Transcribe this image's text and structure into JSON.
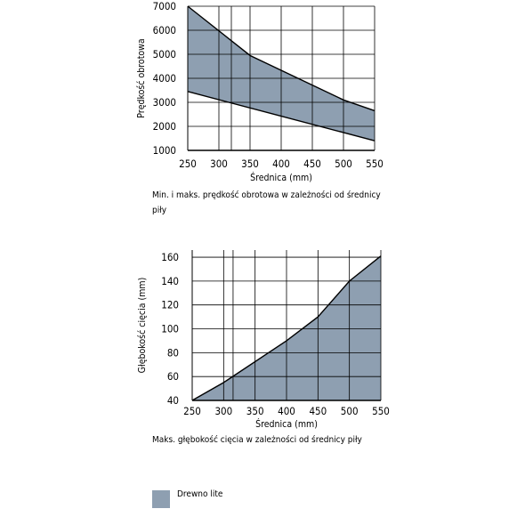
{
  "colors": {
    "fill": "#8e9fb1",
    "line": "#000000",
    "grid": "#000000"
  },
  "chart_data": [
    {
      "type": "area",
      "title": "",
      "caption": "Min. i maks. prędkość obrotowa w zależności od średnicy piły",
      "xlabel": "Średnica (mm)",
      "ylabel": "Prędkość obrotowa",
      "x_ticks": [
        250,
        300,
        350,
        400,
        450,
        500,
        550
      ],
      "y_ticks": [
        1000,
        2000,
        3000,
        4000,
        5000,
        6000,
        7000
      ],
      "x_grid": [
        250,
        300,
        320,
        350,
        400,
        450,
        500,
        550
      ],
      "y_grid": [
        1000,
        2000,
        3000,
        4000,
        5000,
        6000,
        7000
      ],
      "xlim": [
        250,
        550
      ],
      "ylim": [
        1000,
        7000
      ],
      "series": [
        {
          "name": "Drewno lite",
          "role": "max",
          "x": [
            250,
            350,
            500,
            550
          ],
          "y": [
            7000,
            4950,
            3100,
            2650
          ]
        },
        {
          "name": "Drewno lite",
          "role": "min",
          "x": [
            250,
            550
          ],
          "y": [
            3450,
            1400
          ]
        }
      ]
    },
    {
      "type": "area",
      "title": "",
      "caption": "Maks. głębokość cięcia w zależności od średnicy piły",
      "xlabel": "Średnica (mm)",
      "ylabel": "Głębokość cięcia (mm)",
      "x_ticks": [
        250,
        300,
        350,
        400,
        450,
        500,
        550
      ],
      "y_ticks": [
        40,
        60,
        80,
        100,
        120,
        140,
        160
      ],
      "x_grid": [
        250,
        300,
        315,
        350,
        400,
        450,
        500,
        550
      ],
      "y_grid": [
        40,
        60,
        80,
        100,
        120,
        140,
        160
      ],
      "xlim": [
        250,
        550
      ],
      "ylim": [
        40,
        166
      ],
      "series": [
        {
          "name": "Drewno lite",
          "role": "max",
          "x": [
            250,
            300,
            400,
            450,
            500,
            550
          ],
          "y": [
            40,
            55,
            90,
            110,
            140,
            161
          ]
        }
      ]
    }
  ],
  "legend": {
    "label": "Drewno lite"
  }
}
